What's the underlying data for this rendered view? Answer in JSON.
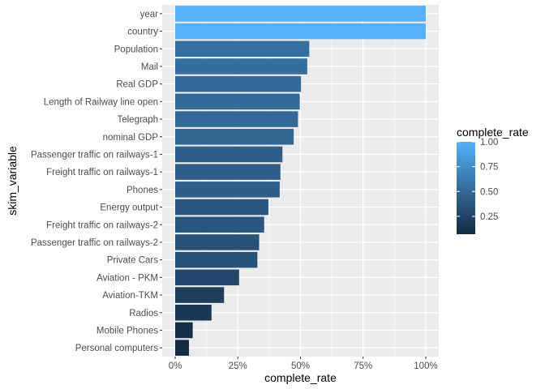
{
  "chart_data": {
    "type": "bar",
    "orientation": "horizontal",
    "xlabel": "complete_rate",
    "ylabel": "skim_variable",
    "xlim": [
      0,
      1
    ],
    "x_ticks": [
      0,
      0.25,
      0.5,
      0.75,
      1
    ],
    "x_tick_labels": [
      "0%",
      "25%",
      "50%",
      "75%",
      "100%"
    ],
    "grid": true,
    "panel_background": "#ebebeb",
    "categories": [
      "year",
      "country",
      "Population",
      "Mail",
      "Real GDP",
      "Length of Railway line open",
      "Telegraph",
      "nominal GDP",
      "Passenger traffic on railways-1",
      "Freight traffic on railways-1",
      "Phones",
      "Energy output",
      "Freight traffic on railways-2",
      "Passenger traffic on railways-2",
      "Private Cars",
      "Aviation - PKM",
      "Aviation-TKM",
      "Radios",
      "Mobile Phones",
      "Personal computers"
    ],
    "values": [
      1.0,
      1.0,
      0.535,
      0.527,
      0.502,
      0.497,
      0.49,
      0.473,
      0.428,
      0.42,
      0.417,
      0.372,
      0.355,
      0.335,
      0.328,
      0.255,
      0.195,
      0.145,
      0.07,
      0.055
    ],
    "legend": {
      "title": "complete_rate",
      "placement": "right",
      "breaks": [
        1.0,
        0.75,
        0.5,
        0.25
      ],
      "labels": [
        "1.00",
        "0.75",
        "0.50",
        "0.25"
      ],
      "color_low": "#132b43",
      "color_high": "#56b1f7"
    }
  }
}
